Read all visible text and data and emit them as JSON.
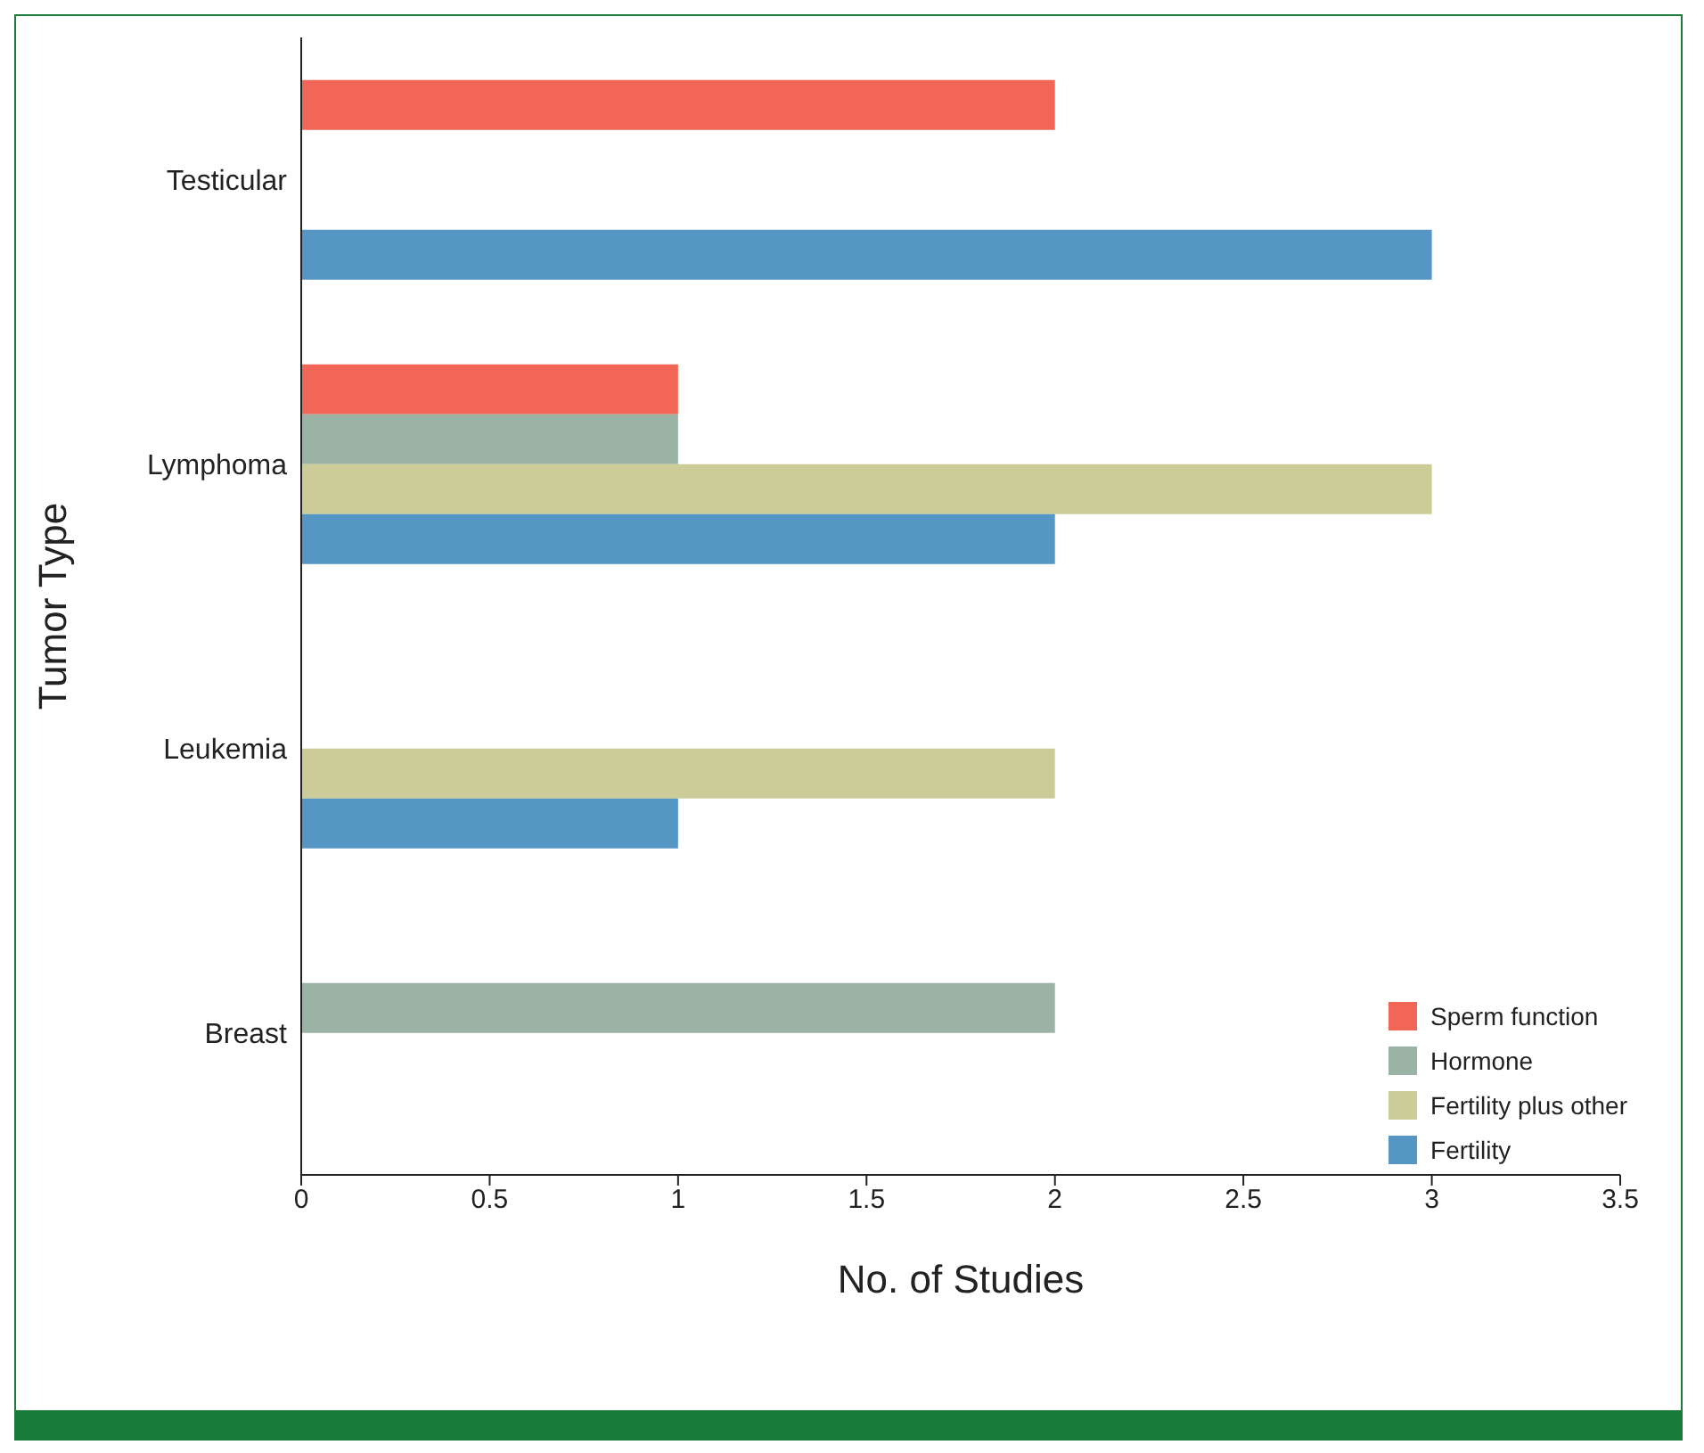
{
  "chart_data": {
    "type": "bar",
    "orientation": "horizontal",
    "xlabel": "No. of Studies",
    "ylabel": "Tumor Type",
    "categories": [
      "Testicular",
      "Lymphoma",
      "Leukemia",
      "Breast"
    ],
    "series": [
      {
        "name": "Sperm function",
        "color": "#f26657",
        "values": [
          2,
          1,
          null,
          null
        ]
      },
      {
        "name": "Hormone",
        "color": "#9ab3a4",
        "values": [
          null,
          1,
          null,
          2
        ]
      },
      {
        "name": "Fertility plus other",
        "color": "#cccc99",
        "values": [
          null,
          3,
          2,
          null
        ]
      },
      {
        "name": "Fertility",
        "color": "#5596c4",
        "values": [
          3,
          2,
          1,
          null
        ]
      }
    ],
    "xlim": [
      0,
      3.5
    ],
    "xticks": [
      0,
      0.5,
      1,
      1.5,
      2,
      2.5,
      3,
      3.5
    ],
    "grid": false,
    "legend": "bottom right"
  }
}
